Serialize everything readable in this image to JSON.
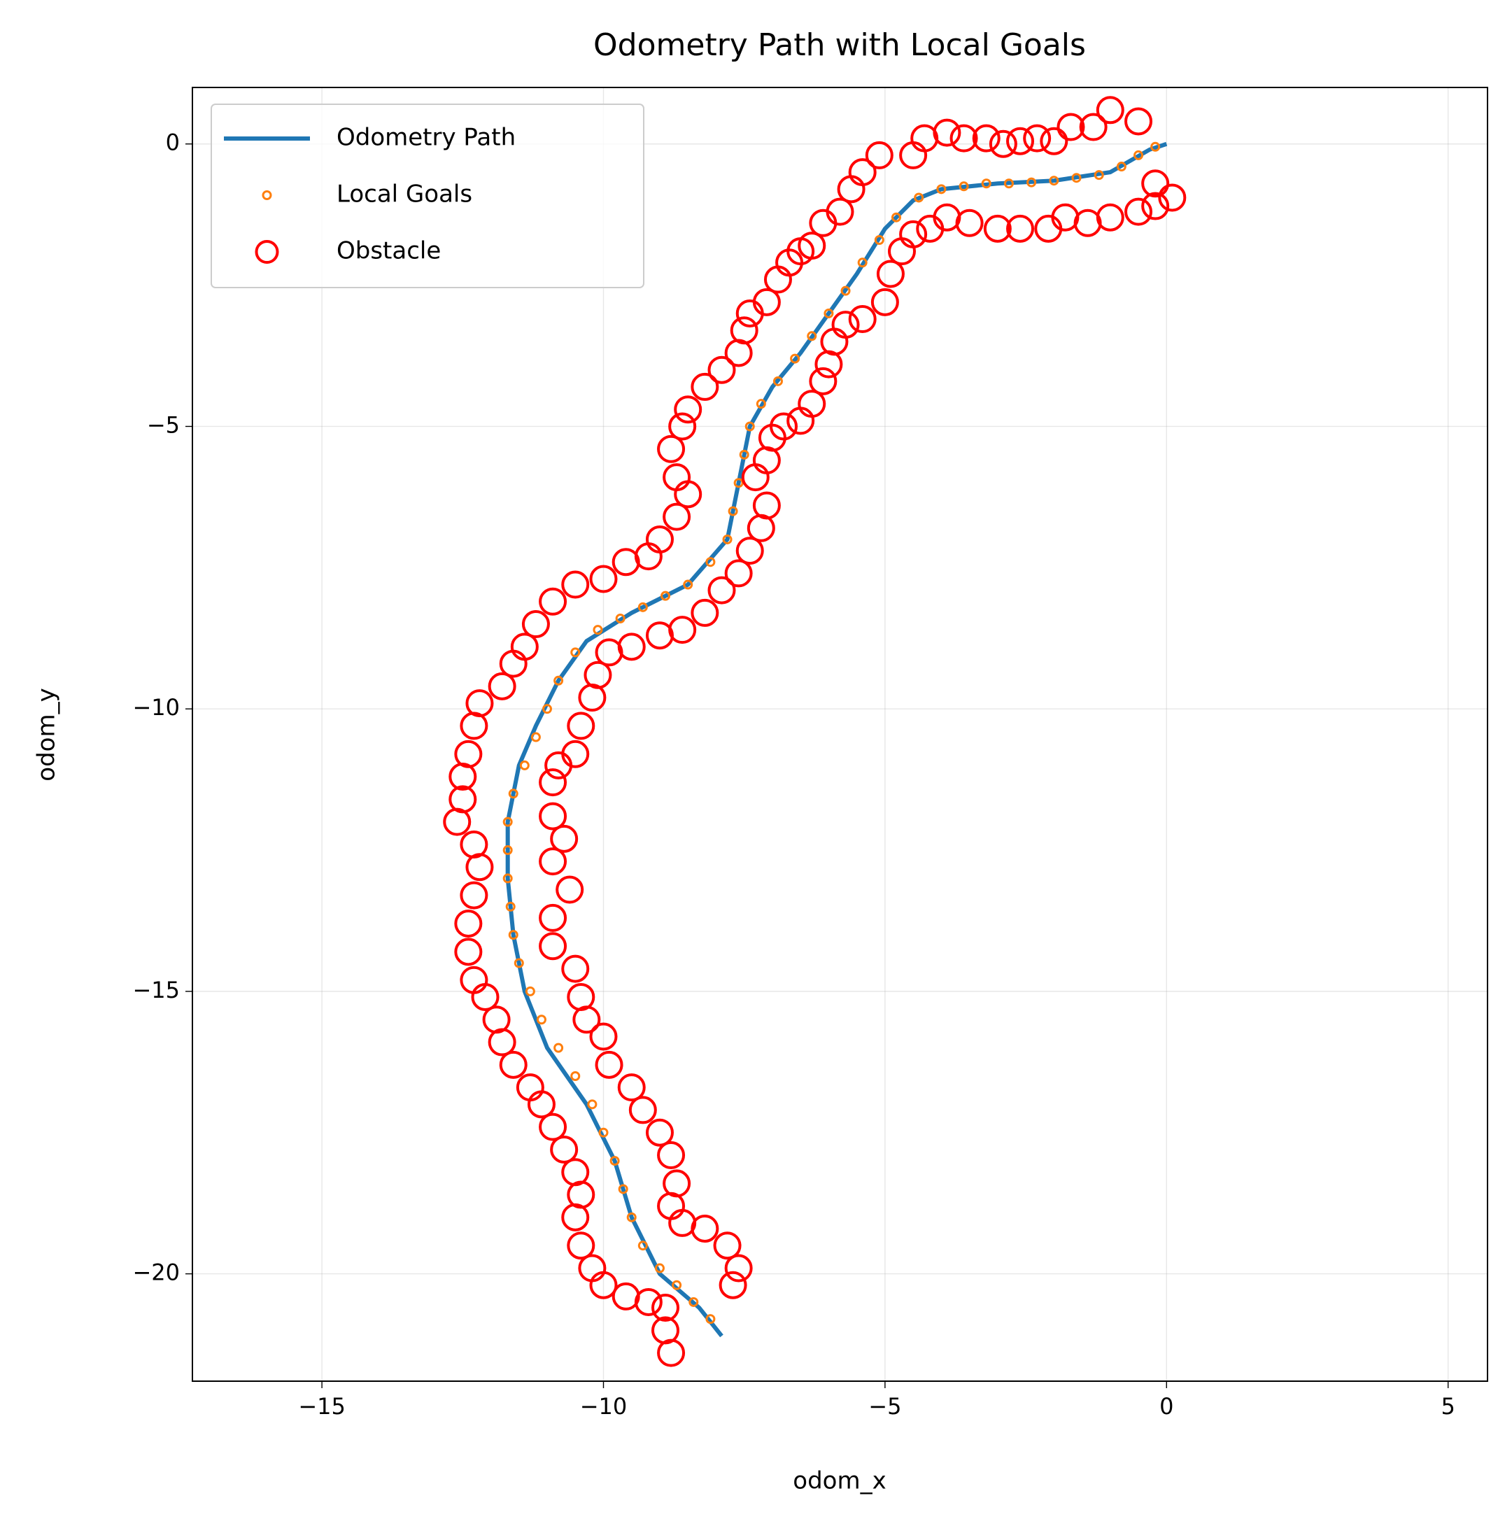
{
  "chart_data": {
    "type": "line",
    "title": "Odometry Path with Local Goals",
    "xlabel": "odom_x",
    "ylabel": "odom_y",
    "xlim": [
      -17.3,
      5.7
    ],
    "ylim": [
      -21.9,
      1.0
    ],
    "xticks": [
      {
        "value": -15,
        "label": "−15"
      },
      {
        "value": -10,
        "label": "−10"
      },
      {
        "value": -5,
        "label": "−5"
      },
      0,
      5
    ],
    "yticks": [
      0,
      {
        "value": -5,
        "label": "−5"
      },
      {
        "value": -10,
        "label": "−10"
      },
      {
        "value": -15,
        "label": "−15"
      },
      {
        "value": -20,
        "label": "−20"
      }
    ],
    "grid": true,
    "legend": "upper left",
    "series": [
      {
        "name": "Odometry Path",
        "type": "line",
        "color": "#1f77b4",
        "x": [
          0,
          -0.3,
          -1,
          -2,
          -3,
          -4,
          -4.5,
          -5,
          -5.5,
          -6,
          -6.5,
          -7,
          -7.4,
          -7.6,
          -7.8,
          -8.5,
          -9.5,
          -10.3,
          -10.8,
          -11.2,
          -11.5,
          -11.7,
          -11.7,
          -11.6,
          -11.4,
          -11,
          -10.3,
          -9.8,
          -9.5,
          -9,
          -8.3,
          -7.9
        ],
        "y": [
          0,
          -0.1,
          -0.5,
          -0.65,
          -0.7,
          -0.8,
          -1,
          -1.5,
          -2.3,
          -3,
          -3.7,
          -4.3,
          -5,
          -6,
          -7,
          -7.8,
          -8.3,
          -8.8,
          -9.5,
          -10.3,
          -11,
          -12,
          -13,
          -14,
          -15,
          -16,
          -17,
          -18,
          -19,
          -20,
          -20.6,
          -21.1
        ]
      },
      {
        "name": "Local Goals",
        "type": "scatter",
        "color": "#ff7f0e",
        "x": [
          -0.2,
          -0.5,
          -0.8,
          -1.2,
          -1.6,
          -2,
          -2.4,
          -2.8,
          -3.2,
          -3.6,
          -4,
          -4.4,
          -4.8,
          -5.1,
          -5.4,
          -5.7,
          -6,
          -6.3,
          -6.6,
          -6.9,
          -7.2,
          -7.4,
          -7.5,
          -7.6,
          -7.7,
          -7.8,
          -8.1,
          -8.5,
          -8.9,
          -9.3,
          -9.7,
          -10.1,
          -10.5,
          -10.8,
          -11,
          -11.2,
          -11.4,
          -11.6,
          -11.7,
          -11.7,
          -11.7,
          -11.65,
          -11.6,
          -11.5,
          -11.3,
          -11.1,
          -10.8,
          -10.5,
          -10.2,
          -10,
          -9.8,
          -9.65,
          -9.5,
          -9.3,
          -9,
          -8.7,
          -8.4,
          -8.1
        ],
        "y": [
          -0.05,
          -0.2,
          -0.4,
          -0.55,
          -0.6,
          -0.65,
          -0.68,
          -0.7,
          -0.7,
          -0.75,
          -0.8,
          -0.95,
          -1.3,
          -1.7,
          -2.1,
          -2.6,
          -3,
          -3.4,
          -3.8,
          -4.2,
          -4.6,
          -5,
          -5.5,
          -6,
          -6.5,
          -7,
          -7.4,
          -7.8,
          -8,
          -8.2,
          -8.4,
          -8.6,
          -9,
          -9.5,
          -10,
          -10.5,
          -11,
          -11.5,
          -12,
          -12.5,
          -13,
          -13.5,
          -14,
          -14.5,
          -15,
          -15.5,
          -16,
          -16.5,
          -17,
          -17.5,
          -18,
          -18.5,
          -19,
          -19.5,
          -19.9,
          -20.2,
          -20.5,
          -20.8
        ]
      },
      {
        "name": "Obstacle",
        "type": "scatter",
        "color": "#ff0000",
        "x": [
          -1,
          -0.5,
          -1.3,
          -1.7,
          -2,
          -2.3,
          -2.6,
          -2.9,
          -3.2,
          -3.6,
          -3.9,
          -4.3,
          -4.5,
          -5.1,
          -5.4,
          -5.6,
          -5.8,
          -6.1,
          -6.3,
          -6.5,
          -6.7,
          -6.9,
          -7.1,
          -7.4,
          -7.5,
          -7.6,
          -7.9,
          -8.2,
          -8.5,
          -8.6,
          -8.8,
          -8.7,
          -8.5,
          -8.7,
          -9,
          -9.2,
          -9.6,
          -10,
          -10.5,
          -10.9,
          -11.2,
          -11.4,
          -11.6,
          -11.8,
          -12.2,
          -12.3,
          -12.4,
          -12.5,
          -12.5,
          -12.6,
          -12.3,
          -12.2,
          -12.3,
          -12.4,
          -12.4,
          -12.3,
          -12.1,
          -11.9,
          -11.8,
          -11.6,
          -11.3,
          -11.1,
          -10.9,
          -10.7,
          -10.5,
          -10.4,
          -10.5,
          -10.4,
          -10.2,
          -10,
          -9.6,
          -9.2,
          -8.9,
          -8.9,
          -8.8,
          0.1,
          -0.2,
          -0.2,
          -0.5,
          -1,
          -1.4,
          -1.8,
          -2.1,
          -2.6,
          -3,
          -3.5,
          -3.9,
          -4.2,
          -4.5,
          -4.7,
          -4.9,
          -5,
          -5.4,
          -5.7,
          -5.9,
          -6,
          -6.1,
          -6.3,
          -6.5,
          -6.8,
          -7,
          -7.1,
          -7.3,
          -7.1,
          -7.2,
          -7.4,
          -7.6,
          -7.9,
          -8.2,
          -8.6,
          -9,
          -9.5,
          -9.9,
          -10.1,
          -10.2,
          -10.4,
          -10.5,
          -10.8,
          -10.9,
          -10.9,
          -10.7,
          -10.9,
          -10.6,
          -10.9,
          -10.9,
          -10.5,
          -10.4,
          -10.3,
          -10,
          -9.9,
          -9.5,
          -9.3,
          -9,
          -8.8,
          -8.7,
          -8.8,
          -8.6,
          -8.2,
          -7.8,
          -7.6,
          -7.7
        ],
        "y": [
          0.6,
          0.4,
          0.3,
          0.3,
          0.05,
          0.1,
          0.05,
          0,
          0.1,
          0.1,
          0.2,
          0.1,
          -0.2,
          -0.2,
          -0.5,
          -0.8,
          -1.2,
          -1.4,
          -1.8,
          -1.9,
          -2.1,
          -2.4,
          -2.8,
          -3,
          -3.3,
          -3.7,
          -4,
          -4.3,
          -4.7,
          -5,
          -5.4,
          -5.9,
          -6.2,
          -6.6,
          -7,
          -7.3,
          -7.4,
          -7.7,
          -7.8,
          -8.1,
          -8.5,
          -8.9,
          -9.2,
          -9.6,
          -9.9,
          -10.3,
          -10.8,
          -11.2,
          -11.6,
          -12,
          -12.4,
          -12.8,
          -13.3,
          -13.8,
          -14.3,
          -14.8,
          -15.1,
          -15.5,
          -15.9,
          -16.3,
          -16.7,
          -17,
          -17.4,
          -17.8,
          -18.2,
          -18.6,
          -19,
          -19.5,
          -19.9,
          -20.2,
          -20.4,
          -20.5,
          -20.6,
          -21,
          -21.4,
          -0.95,
          -0.7,
          -1.1,
          -1.2,
          -1.3,
          -1.4,
          -1.3,
          -1.5,
          -1.5,
          -1.5,
          -1.4,
          -1.3,
          -1.5,
          -1.6,
          -1.9,
          -2.3,
          -2.8,
          -3.1,
          -3.2,
          -3.5,
          -3.9,
          -4.2,
          -4.6,
          -4.9,
          -5,
          -5.2,
          -5.6,
          -5.9,
          -6.4,
          -6.8,
          -7.2,
          -7.6,
          -7.9,
          -8.3,
          -8.6,
          -8.7,
          -8.9,
          -9,
          -9.4,
          -9.8,
          -10.3,
          -10.8,
          -11,
          -11.3,
          -11.9,
          -12.3,
          -12.7,
          -13.2,
          -13.7,
          -14.2,
          -14.6,
          -15.1,
          -15.5,
          -15.8,
          -16.3,
          -16.7,
          -17.1,
          -17.5,
          -17.9,
          -18.4,
          -18.8,
          -19.1,
          -19.2,
          -19.5,
          -19.9,
          -20.2
        ]
      }
    ]
  }
}
